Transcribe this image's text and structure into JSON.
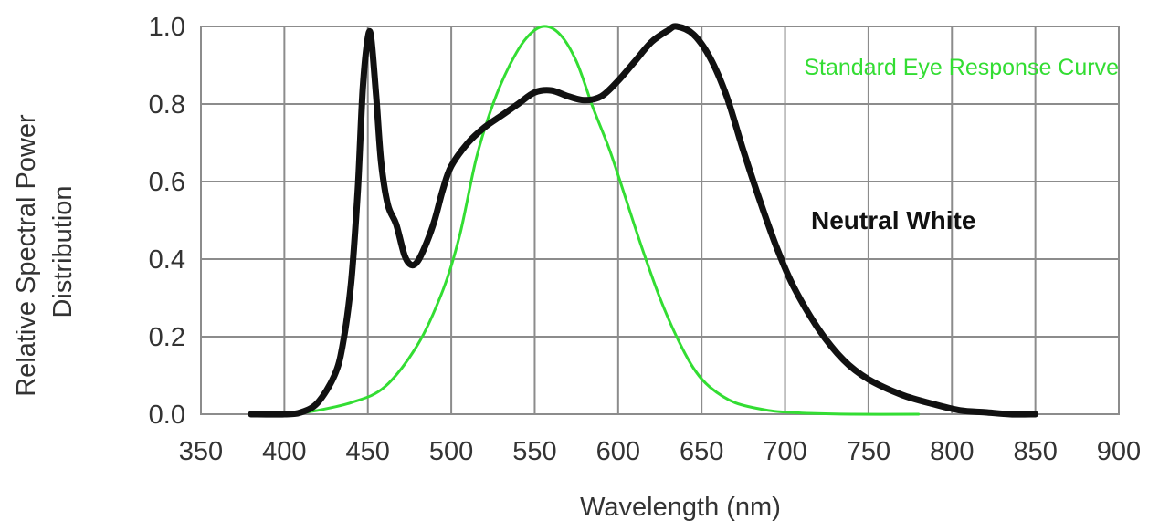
{
  "chart_data": {
    "type": "line",
    "xlabel": "Wavelength (nm)",
    "ylabel_lines": [
      "Relative Spectral Power",
      "Distribution"
    ],
    "xlim": [
      350,
      900
    ],
    "ylim": [
      0.0,
      1.0
    ],
    "x_ticks": [
      "350",
      "400",
      "450",
      "500",
      "550",
      "600",
      "650",
      "700",
      "750",
      "800",
      "850",
      "900"
    ],
    "y_ticks": [
      "0.0",
      "0.2",
      "0.4",
      "0.6",
      "0.8",
      "1.0"
    ],
    "grid": true,
    "annotations": [
      {
        "text": "Standard Eye Response Curve",
        "color": "#33dd33"
      },
      {
        "text": "Neutral White",
        "color": "#111111"
      }
    ],
    "series": [
      {
        "color": "#111111",
        "points": [
          [
            380,
            0.0
          ],
          [
            400,
            0.0
          ],
          [
            410,
            0.005
          ],
          [
            420,
            0.03
          ],
          [
            430,
            0.1
          ],
          [
            435,
            0.18
          ],
          [
            440,
            0.34
          ],
          [
            444,
            0.58
          ],
          [
            447,
            0.84
          ],
          [
            450,
            0.97
          ],
          [
            452,
            0.97
          ],
          [
            455,
            0.82
          ],
          [
            458,
            0.65
          ],
          [
            462,
            0.54
          ],
          [
            467,
            0.49
          ],
          [
            472,
            0.41
          ],
          [
            476,
            0.385
          ],
          [
            480,
            0.395
          ],
          [
            485,
            0.44
          ],
          [
            490,
            0.5
          ],
          [
            495,
            0.58
          ],
          [
            500,
            0.64
          ],
          [
            510,
            0.7
          ],
          [
            520,
            0.74
          ],
          [
            530,
            0.77
          ],
          [
            540,
            0.8
          ],
          [
            550,
            0.83
          ],
          [
            560,
            0.835
          ],
          [
            570,
            0.82
          ],
          [
            580,
            0.81
          ],
          [
            590,
            0.82
          ],
          [
            600,
            0.86
          ],
          [
            610,
            0.91
          ],
          [
            620,
            0.96
          ],
          [
            630,
            0.99
          ],
          [
            635,
            1.0
          ],
          [
            645,
            0.98
          ],
          [
            655,
            0.92
          ],
          [
            665,
            0.82
          ],
          [
            675,
            0.68
          ],
          [
            685,
            0.55
          ],
          [
            695,
            0.43
          ],
          [
            705,
            0.33
          ],
          [
            720,
            0.22
          ],
          [
            735,
            0.14
          ],
          [
            750,
            0.09
          ],
          [
            770,
            0.05
          ],
          [
            790,
            0.025
          ],
          [
            805,
            0.01
          ],
          [
            820,
            0.005
          ],
          [
            835,
            0.0
          ],
          [
            850,
            0.0
          ]
        ]
      },
      {
        "color": "#33dd33",
        "points": [
          [
            405,
            0.0
          ],
          [
            420,
            0.01
          ],
          [
            440,
            0.03
          ],
          [
            460,
            0.07
          ],
          [
            480,
            0.18
          ],
          [
            495,
            0.32
          ],
          [
            505,
            0.46
          ],
          [
            515,
            0.66
          ],
          [
            525,
            0.8
          ],
          [
            535,
            0.9
          ],
          [
            545,
            0.97
          ],
          [
            555,
            1.0
          ],
          [
            565,
            0.98
          ],
          [
            575,
            0.91
          ],
          [
            585,
            0.79
          ],
          [
            595,
            0.68
          ],
          [
            605,
            0.55
          ],
          [
            615,
            0.42
          ],
          [
            625,
            0.3
          ],
          [
            635,
            0.2
          ],
          [
            645,
            0.12
          ],
          [
            655,
            0.07
          ],
          [
            670,
            0.03
          ],
          [
            690,
            0.01
          ],
          [
            710,
            0.003
          ],
          [
            740,
            0.0
          ],
          [
            780,
            0.0
          ]
        ]
      }
    ]
  }
}
